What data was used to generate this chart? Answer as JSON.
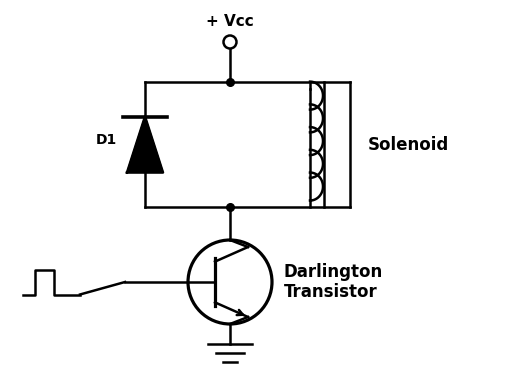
{
  "bg_color": "#ffffff",
  "line_color": "#000000",
  "lw": 1.8,
  "vcc_label": "+ Vcc",
  "d1_label": "D1",
  "solenoid_label": "Solenoid",
  "transistor_label": "Darlington\nTransistor",
  "fig_width": 5.2,
  "fig_height": 3.92,
  "dpi": 100
}
